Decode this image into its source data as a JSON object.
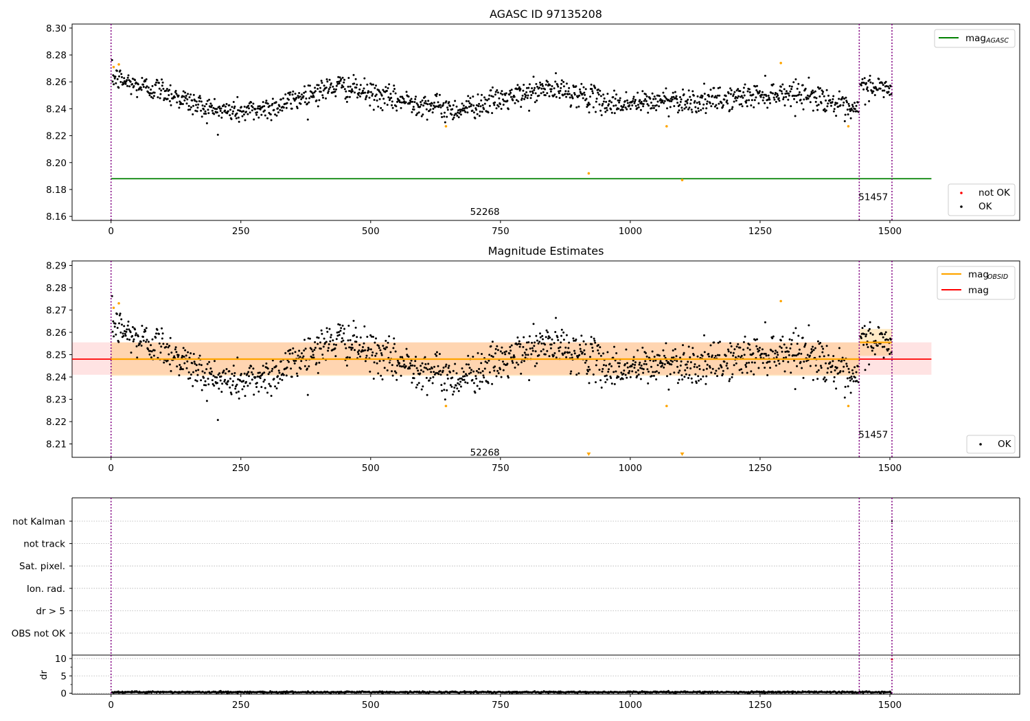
{
  "chart_data": [
    {
      "type": "scatter",
      "title": "AGASC ID 97135208",
      "xlabel": "",
      "ylabel": "",
      "xlim": [
        -75,
        1750
      ],
      "ylim": [
        8.157,
        8.303
      ],
      "xticks": [
        0,
        250,
        500,
        750,
        1000,
        1250,
        1500
      ],
      "yticks": [
        8.16,
        8.18,
        8.2,
        8.22,
        8.24,
        8.26,
        8.28,
        8.3
      ],
      "ytick_labels": [
        "8.16",
        "8.18",
        "8.20",
        "8.22",
        "8.24",
        "8.26",
        "8.28",
        "8.30"
      ],
      "vlines": [
        0,
        1441,
        1504
      ],
      "obsid_labels": [
        {
          "text": "52268",
          "x": 720,
          "y": 8.163
        },
        {
          "text": "51457",
          "x": 1468,
          "y": 8.174
        }
      ],
      "mag_agasc": {
        "value": 8.188,
        "x": [
          0,
          1580
        ]
      },
      "segment_trend": [
        {
          "x": 0,
          "y": 8.264
        },
        {
          "x": 50,
          "y": 8.257
        },
        {
          "x": 100,
          "y": 8.254
        },
        {
          "x": 150,
          "y": 8.245
        },
        {
          "x": 200,
          "y": 8.239
        },
        {
          "x": 260,
          "y": 8.238
        },
        {
          "x": 320,
          "y": 8.242
        },
        {
          "x": 380,
          "y": 8.251
        },
        {
          "x": 440,
          "y": 8.257
        },
        {
          "x": 480,
          "y": 8.253
        },
        {
          "x": 540,
          "y": 8.247
        },
        {
          "x": 600,
          "y": 8.244
        },
        {
          "x": 660,
          "y": 8.239
        },
        {
          "x": 720,
          "y": 8.244
        },
        {
          "x": 780,
          "y": 8.249
        },
        {
          "x": 840,
          "y": 8.255
        },
        {
          "x": 900,
          "y": 8.251
        },
        {
          "x": 960,
          "y": 8.244
        },
        {
          "x": 1020,
          "y": 8.244
        },
        {
          "x": 1080,
          "y": 8.247
        },
        {
          "x": 1140,
          "y": 8.245
        },
        {
          "x": 1200,
          "y": 8.248
        },
        {
          "x": 1260,
          "y": 8.251
        },
        {
          "x": 1320,
          "y": 8.252
        },
        {
          "x": 1380,
          "y": 8.247
        },
        {
          "x": 1420,
          "y": 8.238
        },
        {
          "x": 1440,
          "y": 8.239
        }
      ],
      "segment2_trend": [
        {
          "x": 1442,
          "y": 8.257
        },
        {
          "x": 1504,
          "y": 8.255
        }
      ],
      "scatter_spread": 0.0045,
      "not_ok_points": [
        {
          "x": 5,
          "y": 8.271
        },
        {
          "x": 15,
          "y": 8.273
        },
        {
          "x": 645,
          "y": 8.227
        },
        {
          "x": 920,
          "y": 8.192
        },
        {
          "x": 1070,
          "y": 8.227
        },
        {
          "x": 1100,
          "y": 8.187
        },
        {
          "x": 1290,
          "y": 8.274
        },
        {
          "x": 1420,
          "y": 8.227
        }
      ],
      "legend_upper": [
        {
          "label": "mag",
          "sub": "AGASC",
          "color": "#008000"
        }
      ],
      "legend_lower": [
        {
          "label": "not OK",
          "color": "#ff0000"
        },
        {
          "label": "OK",
          "color": "#000000"
        }
      ]
    },
    {
      "type": "scatter",
      "title": "Magnitude Estimates",
      "xlabel": "",
      "ylabel": "",
      "xlim": [
        -75,
        1750
      ],
      "ylim": [
        8.204,
        8.292
      ],
      "xticks": [
        0,
        250,
        500,
        750,
        1000,
        1250,
        1500
      ],
      "yticks": [
        8.21,
        8.22,
        8.23,
        8.24,
        8.25,
        8.26,
        8.27,
        8.28,
        8.29
      ],
      "ytick_labels": [
        "8.21",
        "8.22",
        "8.23",
        "8.24",
        "8.25",
        "8.26",
        "8.27",
        "8.28",
        "8.29"
      ],
      "vlines": [
        0,
        1441,
        1504
      ],
      "obsid_labels": [
        {
          "text": "52268",
          "x": 720,
          "y": 8.206
        },
        {
          "text": "51457",
          "x": 1468,
          "y": 8.214
        }
      ],
      "mag": {
        "value": 8.248,
        "low": 8.241,
        "high": 8.2555,
        "x": [
          -75,
          1580
        ]
      },
      "mag_obsid": [
        {
          "x": [
            0,
            1441
          ],
          "value": 8.248,
          "low": 8.2405,
          "high": 8.2555
        },
        {
          "x": [
            1442,
            1504
          ],
          "value": 8.2555,
          "low": 8.2495,
          "high": 8.2615
        }
      ],
      "lower_limit_markers": [
        {
          "x": 920
        },
        {
          "x": 1100
        }
      ],
      "legend_upper": [
        {
          "label": "mag",
          "sub": "OBSID",
          "color": "#ffa500"
        },
        {
          "label": "mag",
          "sub": "",
          "color": "#ff0000"
        }
      ],
      "legend_lower": [
        {
          "label": "OK",
          "color": "#000000"
        }
      ]
    },
    {
      "type": "scatter",
      "title": "",
      "xlabel": "",
      "ylabel": "",
      "xlim": [
        -75,
        1750
      ],
      "xticks": [
        0,
        250,
        500,
        750,
        1000,
        1250,
        1500
      ],
      "vlines": [
        0,
        1441,
        1504
      ],
      "flag_rows": [
        "not Kalman",
        "not track",
        "Sat. pixel.",
        "Ion. rad.",
        "dr > 5",
        "OBS not OK"
      ],
      "flag_points": [
        {
          "row": "not Kalman",
          "x": 1504
        }
      ]
    },
    {
      "type": "scatter",
      "title": "",
      "xlabel": "",
      "ylabel": "dr",
      "xlim": [
        -75,
        1750
      ],
      "ylim": [
        -0.3,
        11
      ],
      "xticks": [
        0,
        250,
        500,
        750,
        1000,
        1250,
        1500
      ],
      "yticks": [
        0,
        5,
        10
      ],
      "ytick_labels": [
        "0",
        "5",
        "10"
      ],
      "vlines": [
        0,
        1441,
        1504
      ],
      "dr_typical": 0.3,
      "dr_outliers": [
        {
          "x": 1504,
          "y": 9.8
        }
      ]
    }
  ]
}
